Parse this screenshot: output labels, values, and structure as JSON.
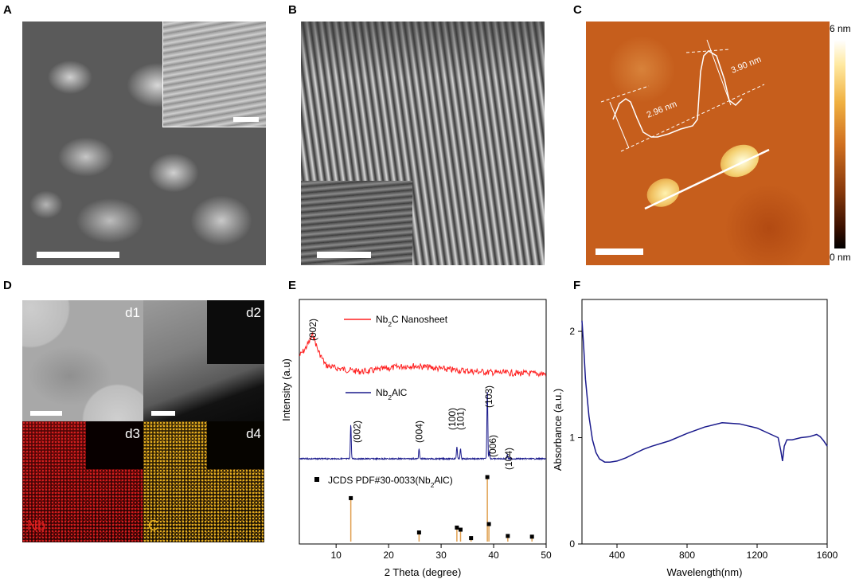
{
  "panels": {
    "A": {
      "label": "A"
    },
    "B": {
      "label": "B"
    },
    "C": {
      "label": "C",
      "colorbar_max": "6 nm",
      "colorbar_min": "0 nm",
      "height_1": "2.96 nm",
      "height_2": "3.90 nm"
    },
    "D": {
      "label": "D",
      "tiles": [
        "d1",
        "d2",
        "d3",
        "d4"
      ],
      "element_nb": "Nb",
      "element_c": "C"
    },
    "E": {
      "label": "E"
    },
    "F": {
      "label": "F"
    }
  },
  "colors": {
    "nb_map": "#c41010",
    "c_map": "#e0a820",
    "afm_base": "#c85a1a",
    "xrd_nanosheet": "#ff2020",
    "xrd_nb2alc": "#1a1a8c",
    "reference_line": "#e0a050",
    "absorbance": "#1a1a8c"
  },
  "chart_data": [
    {
      "panel": "E",
      "type": "line",
      "xlabel": "2 Theta (degree)",
      "ylabel": "Intensity (a.u)",
      "xlim": [
        3,
        50
      ],
      "xticks": [
        10,
        20,
        30,
        40,
        50
      ],
      "series": [
        {
          "name": "Nb2C Nanosheet",
          "name_main": "Nb",
          "name_sub": "2",
          "name_rest": "C Nanosheet",
          "x": [
            3,
            4,
            5,
            5.6,
            6.5,
            8,
            10,
            12,
            14,
            16,
            18,
            20,
            22,
            24,
            26,
            28,
            30,
            32,
            34,
            36,
            38,
            40,
            42,
            44,
            46,
            48,
            50
          ],
          "y": [
            0.86,
            0.88,
            0.91,
            0.93,
            0.88,
            0.83,
            0.82,
            0.815,
            0.81,
            0.81,
            0.815,
            0.82,
            0.825,
            0.828,
            0.826,
            0.822,
            0.818,
            0.815,
            0.812,
            0.81,
            0.808,
            0.806,
            0.805,
            0.804,
            0.803,
            0.802,
            0.802
          ],
          "peak_labels": [
            {
              "x": 5.6,
              "label": "(002)"
            }
          ]
        },
        {
          "name": "Nb2AlC",
          "name_main": "Nb",
          "name_sub": "2",
          "name_rest": "AlC",
          "peaks": [
            {
              "x": 12.8,
              "height": 0.7,
              "label": "(002)"
            },
            {
              "x": 25.8,
              "height": 0.2,
              "label": "(004)"
            },
            {
              "x": 33.0,
              "height": 0.25,
              "label": "(100)"
            },
            {
              "x": 33.7,
              "height": 0.2,
              "label": "(101)"
            },
            {
              "x": 38.8,
              "height": 1.4,
              "label": "(103)"
            },
            {
              "x": 39.2,
              "height": 0.15,
              "label": "(006)"
            },
            {
              "x": 42.6,
              "height": 0.08,
              "label": "(104)"
            }
          ]
        },
        {
          "name": "JCDS PDF#30-0033(Nb2AlC)",
          "name_main": "JCDS PDF#30-0033(Nb",
          "name_sub": "2",
          "name_rest": "AlC)",
          "lines": [
            {
              "x": 12.8,
              "value": 0.62
            },
            {
              "x": 25.8,
              "value": 0.13
            },
            {
              "x": 33.0,
              "value": 0.2
            },
            {
              "x": 33.7,
              "value": 0.17
            },
            {
              "x": 35.7,
              "value": 0.05
            },
            {
              "x": 38.8,
              "value": 0.92
            },
            {
              "x": 39.1,
              "value": 0.25
            },
            {
              "x": 42.7,
              "value": 0.08
            },
            {
              "x": 47.3,
              "value": 0.07
            }
          ]
        }
      ]
    },
    {
      "panel": "F",
      "type": "line",
      "xlabel": "Wavelength(nm)",
      "ylabel": "Absorbance (a.u.)",
      "xlim": [
        200,
        1600
      ],
      "ylim": [
        0,
        2.3
      ],
      "xticks": [
        400,
        800,
        1200,
        1600
      ],
      "yticks": [
        0,
        1,
        2
      ],
      "series": [
        {
          "x": [
            200,
            210,
            220,
            240,
            260,
            280,
            300,
            330,
            360,
            400,
            450,
            500,
            550,
            600,
            700,
            800,
            900,
            1000,
            1100,
            1200,
            1280,
            1320,
            1335,
            1345,
            1355,
            1370,
            1400,
            1450,
            1500,
            1540,
            1560,
            1580,
            1600
          ],
          "y": [
            2.1,
            1.85,
            1.55,
            1.2,
            0.98,
            0.86,
            0.8,
            0.77,
            0.77,
            0.78,
            0.81,
            0.85,
            0.89,
            0.92,
            0.97,
            1.04,
            1.1,
            1.14,
            1.13,
            1.09,
            1.03,
            1.0,
            0.88,
            0.78,
            0.92,
            0.98,
            0.98,
            1.0,
            1.01,
            1.03,
            1.01,
            0.97,
            0.92
          ]
        }
      ]
    }
  ]
}
